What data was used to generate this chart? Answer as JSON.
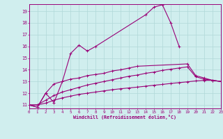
{
  "xlabel": "Windchill (Refroidissement éolien,°C)",
  "background_color": "#d0eeee",
  "grid_color": "#b0d8d8",
  "line_color": "#990077",
  "xmin": 0,
  "xmax": 23,
  "ymin": 10.7,
  "ymax": 19.6,
  "yticks": [
    11,
    12,
    13,
    14,
    15,
    16,
    17,
    18,
    19
  ],
  "xticks": [
    0,
    1,
    2,
    3,
    4,
    5,
    6,
    7,
    8,
    9,
    10,
    11,
    12,
    13,
    14,
    15,
    16,
    17,
    18,
    19,
    20,
    21,
    22,
    23
  ],
  "series": [
    {
      "x": [
        0,
        1,
        2,
        3,
        4,
        5,
        6,
        7,
        8,
        14,
        15,
        16,
        17,
        18
      ],
      "y": [
        11.0,
        10.8,
        12.0,
        11.2,
        13.0,
        15.4,
        16.1,
        15.6,
        16.0,
        18.7,
        19.35,
        19.55,
        18.0,
        16.0
      ]
    },
    {
      "x": [
        0,
        1,
        2,
        3,
        4,
        5,
        6,
        7,
        8,
        9,
        10,
        11,
        12,
        13,
        19,
        20,
        21,
        22,
        23
      ],
      "y": [
        11.0,
        10.8,
        12.0,
        12.8,
        13.0,
        13.2,
        13.3,
        13.5,
        13.6,
        13.7,
        13.9,
        14.0,
        14.15,
        14.3,
        14.5,
        13.5,
        13.3,
        13.1,
        13.0
      ]
    },
    {
      "x": [
        0,
        1,
        2,
        3,
        4,
        5,
        6,
        7,
        8,
        9,
        10,
        11,
        12,
        13,
        14,
        15,
        16,
        17,
        18,
        19,
        20,
        21,
        22,
        23
      ],
      "y": [
        11.0,
        11.0,
        11.4,
        11.8,
        12.1,
        12.3,
        12.5,
        12.7,
        12.85,
        13.0,
        13.15,
        13.3,
        13.45,
        13.55,
        13.7,
        13.8,
        13.95,
        14.05,
        14.15,
        14.25,
        13.4,
        13.2,
        13.1,
        13.0
      ]
    },
    {
      "x": [
        0,
        1,
        2,
        3,
        4,
        5,
        6,
        7,
        8,
        9,
        10,
        11,
        12,
        13,
        14,
        15,
        16,
        17,
        18,
        19,
        20,
        21,
        22,
        23
      ],
      "y": [
        11.0,
        11.0,
        11.15,
        11.4,
        11.6,
        11.75,
        11.9,
        12.0,
        12.1,
        12.2,
        12.3,
        12.38,
        12.45,
        12.52,
        12.6,
        12.68,
        12.75,
        12.83,
        12.9,
        12.97,
        13.05,
        13.1,
        13.1,
        13.0
      ]
    }
  ]
}
